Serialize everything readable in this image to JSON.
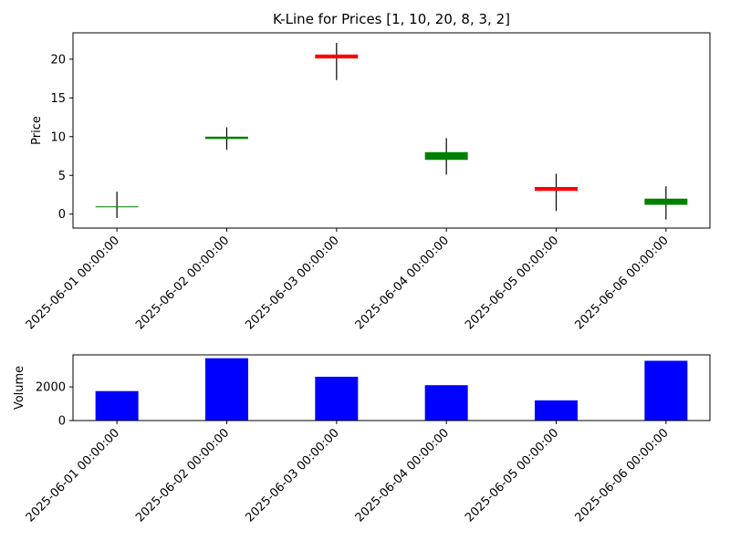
{
  "chart_data": [
    {
      "type": "candlestick",
      "title": "K-Line for Prices [1, 10, 20, 8, 3, 2]",
      "xlabel": "",
      "ylabel": "Price",
      "ylim": [
        -1.8,
        23.4
      ],
      "yticks": [
        0,
        5,
        10,
        15,
        20
      ],
      "categories": [
        "2025-06-01 00:00:00",
        "2025-06-02 00:00:00",
        "2025-06-03 00:00:00",
        "2025-06-04 00:00:00",
        "2025-06-05 00:00:00",
        "2025-06-06 00:00:00"
      ],
      "ohlc": [
        {
          "open": 1.0,
          "high": 2.9,
          "low": -0.5,
          "close": 1.0
        },
        {
          "open": 9.7,
          "high": 11.2,
          "low": 8.3,
          "close": 10.0
        },
        {
          "open": 20.6,
          "high": 22.1,
          "low": 17.3,
          "close": 20.1
        },
        {
          "open": 7.0,
          "high": 9.8,
          "low": 5.1,
          "close": 8.0
        },
        {
          "open": 3.5,
          "high": 5.2,
          "low": 0.4,
          "close": 3.0
        },
        {
          "open": 1.2,
          "high": 3.6,
          "low": -0.7,
          "close": 2.0
        }
      ],
      "grid": false,
      "colors": {
        "up": "#008000",
        "down": "#ff0000",
        "wick": "#000000"
      }
    },
    {
      "type": "bar",
      "xlabel": "",
      "ylabel": "Volume",
      "ylim": [
        0,
        3900
      ],
      "yticks": [
        0,
        2000
      ],
      "categories": [
        "2025-06-01 00:00:00",
        "2025-06-02 00:00:00",
        "2025-06-03 00:00:00",
        "2025-06-04 00:00:00",
        "2025-06-05 00:00:00",
        "2025-06-06 00:00:00"
      ],
      "values": [
        1750,
        3700,
        2600,
        2100,
        1200,
        3550
      ],
      "grid": false,
      "colors": {
        "bar": "#0000ff"
      }
    }
  ]
}
